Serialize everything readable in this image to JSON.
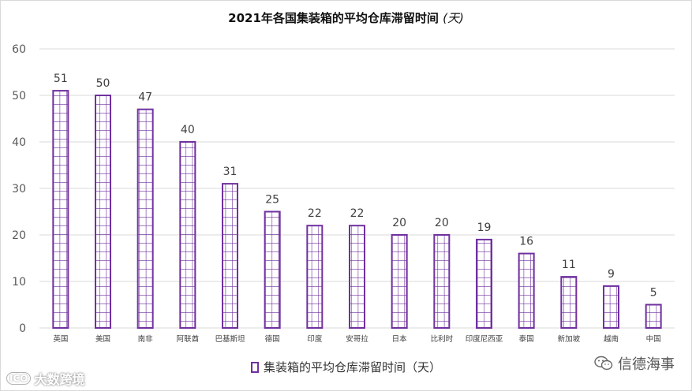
{
  "chart_data": {
    "type": "bar",
    "title": "2021年各国集装箱的平均仓库滞留时间",
    "title_unit": "(天)",
    "categories": [
      "英国",
      "美国",
      "南非",
      "阿联酋",
      "巴基斯坦",
      "德国",
      "印度",
      "安哥拉",
      "日本",
      "比利时",
      "印度尼西亚",
      "泰国",
      "新加坡",
      "越南",
      "中国"
    ],
    "series": [
      {
        "name": "集装箱的平均仓库滞留时间（天）",
        "values": [
          51,
          50,
          47,
          40,
          31,
          25,
          22,
          22,
          20,
          20,
          19,
          16,
          11,
          9,
          5
        ],
        "color": "#7030a0",
        "pattern": "grid"
      }
    ],
    "ylim": [
      0,
      60
    ],
    "yticks": [
      0,
      10,
      20,
      30,
      40,
      50,
      60
    ],
    "grid": true,
    "legend_position": "bottom",
    "data_labels": true
  },
  "watermarks": {
    "left_logo": "ICO",
    "left_text": "大数跨境",
    "right_text": "信德海事",
    "right_icon": "wechat-icon"
  }
}
